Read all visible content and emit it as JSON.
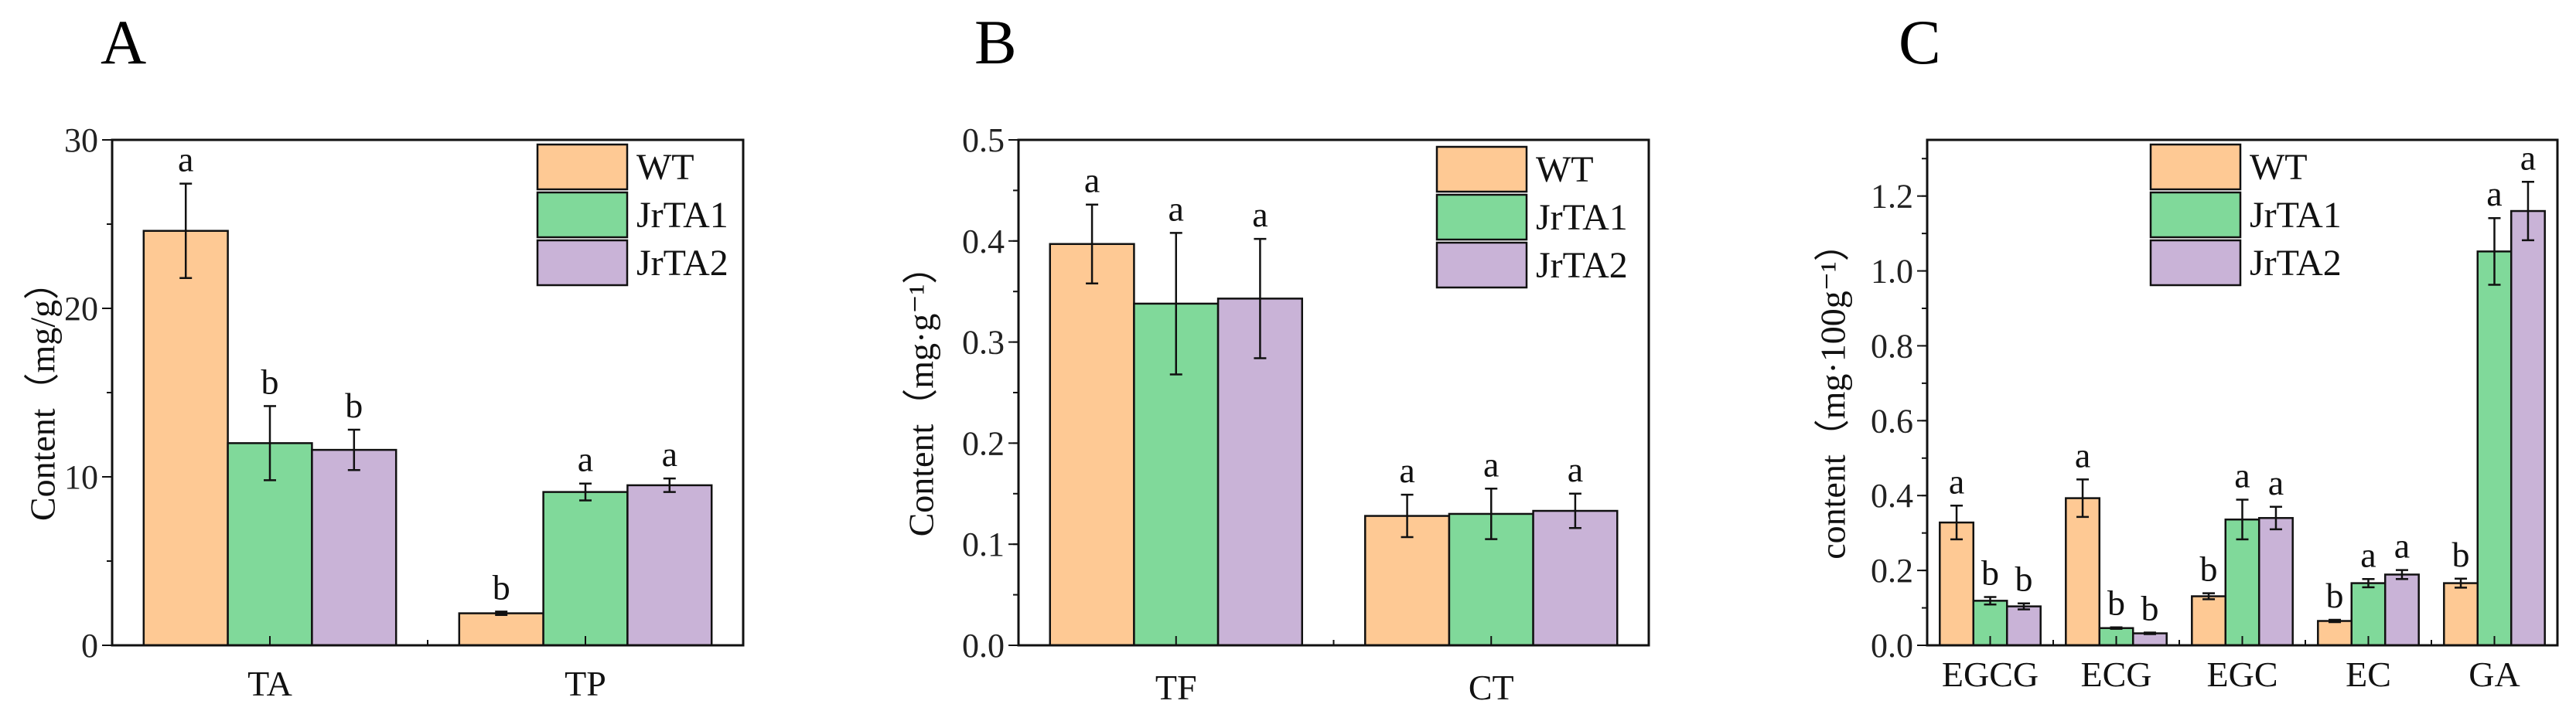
{
  "colors": {
    "WT": "#FEC994",
    "JrTA1": "#80D99A",
    "JrTA2": "#C9B3D7"
  },
  "chart_data": [
    {
      "type": "bar",
      "panel": "A",
      "ylabel": "Content（mg/g）",
      "ylim": [
        0,
        30
      ],
      "yticks": [
        0,
        10,
        20,
        30
      ],
      "ytick_labels": [
        "0",
        "10",
        "20",
        "30"
      ],
      "yminor_step": 5,
      "legend": [
        "WT",
        "JrTA1",
        "JrTA2"
      ],
      "legend_placement": "top-right",
      "categories": [
        "TA",
        "TP"
      ],
      "series": [
        {
          "name": "WT",
          "values": [
            24.6,
            1.9
          ],
          "errors": [
            2.8,
            0.1
          ],
          "letters": [
            "a",
            "b"
          ]
        },
        {
          "name": "JrTA1",
          "values": [
            12.0,
            9.1
          ],
          "errors": [
            2.2,
            0.5
          ],
          "letters": [
            "b",
            "a"
          ]
        },
        {
          "name": "JrTA2",
          "values": [
            11.6,
            9.5
          ],
          "errors": [
            1.2,
            0.4
          ],
          "letters": [
            "b",
            "a"
          ]
        }
      ]
    },
    {
      "type": "bar",
      "panel": "B",
      "ylabel": "Content（mg·g⁻¹）",
      "ylim": [
        0,
        0.5
      ],
      "yticks": [
        0,
        0.1,
        0.2,
        0.3,
        0.4,
        0.5
      ],
      "ytick_labels": [
        "0.0",
        "0.1",
        "0.2",
        "0.3",
        "0.4",
        "0.5"
      ],
      "yminor_step": 0.05,
      "legend": [
        "WT",
        "JrTA1",
        "JrTA2"
      ],
      "legend_placement": "top-right",
      "categories": [
        "TF",
        "CT"
      ],
      "series": [
        {
          "name": "WT",
          "values": [
            0.397,
            0.128
          ],
          "errors": [
            0.039,
            0.021
          ],
          "letters": [
            "a",
            "a"
          ]
        },
        {
          "name": "JrTA1",
          "values": [
            0.338,
            0.13
          ],
          "errors": [
            0.07,
            0.025
          ],
          "letters": [
            "a",
            "a"
          ]
        },
        {
          "name": "JrTA2",
          "values": [
            0.343,
            0.133
          ],
          "errors": [
            0.059,
            0.017
          ],
          "letters": [
            "a",
            "a"
          ]
        }
      ]
    },
    {
      "type": "bar",
      "panel": "C",
      "ylabel": "content（mg·100g⁻¹）",
      "ylim": [
        0,
        1.35
      ],
      "yticks": [
        0,
        0.2,
        0.4,
        0.6,
        0.8,
        1.0,
        1.2
      ],
      "ytick_labels": [
        "0.0",
        "0.2",
        "0.4",
        "0.6",
        "0.8",
        "1.0",
        "1.2"
      ],
      "yminor_step": 0.1,
      "legend": [
        "WT",
        "JrTA1",
        "JrTA2"
      ],
      "legend_placement": "top-center",
      "categories": [
        "EGCG",
        "ECG",
        "EGC",
        "EC",
        "GA"
      ],
      "series": [
        {
          "name": "WT",
          "values": [
            0.328,
            0.393,
            0.131,
            0.065,
            0.166
          ],
          "errors": [
            0.045,
            0.05,
            0.008,
            0.003,
            0.012
          ],
          "letters": [
            "a",
            "a",
            "b",
            "b",
            "b"
          ]
        },
        {
          "name": "JrTA1",
          "values": [
            0.119,
            0.046,
            0.336,
            0.166,
            1.052
          ],
          "errors": [
            0.01,
            0.002,
            0.053,
            0.011,
            0.089
          ],
          "letters": [
            "b",
            "b",
            "a",
            "a",
            "a"
          ]
        },
        {
          "name": "JrTA2",
          "values": [
            0.104,
            0.032,
            0.34,
            0.189,
            1.16
          ],
          "errors": [
            0.008,
            0.002,
            0.03,
            0.012,
            0.078
          ],
          "letters": [
            "b",
            "b",
            "a",
            "a",
            "a"
          ]
        }
      ]
    }
  ]
}
